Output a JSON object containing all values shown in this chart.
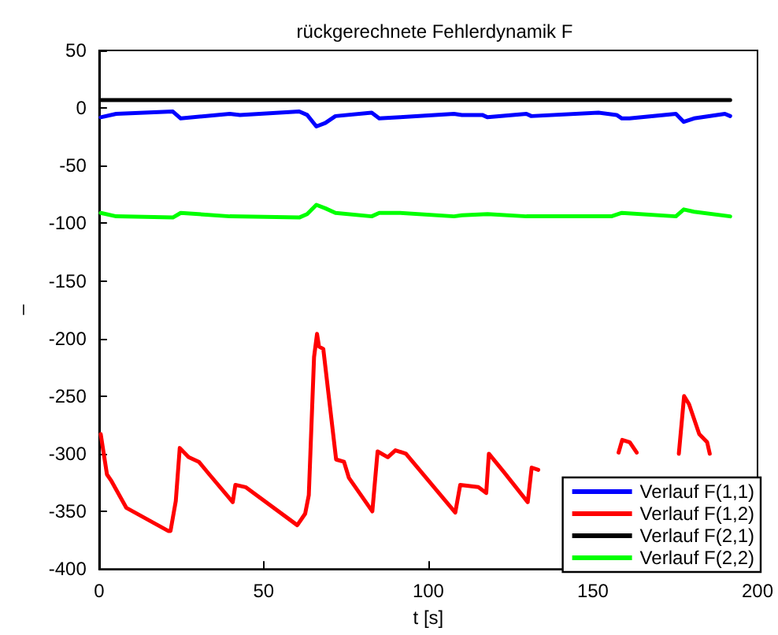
{
  "chart_data": {
    "type": "line",
    "title": "rückgerechnete Fehlerdynamik F",
    "xlabel": "t [s]",
    "ylabel": "–",
    "xlim": [
      0,
      200
    ],
    "xticks": [
      0,
      50,
      100,
      150,
      200
    ],
    "ylim": [
      -400,
      50
    ],
    "yticks": [
      -400,
      -350,
      -300,
      -250,
      -200,
      -150,
      -100,
      -50,
      0,
      50
    ],
    "grid": false,
    "legend": "bottom right",
    "marker": "none",
    "line_style": "solid",
    "series": [
      {
        "name": "Verlauf F(1,1)",
        "color": "#0000ff",
        "x": [
          0.5,
          5.2,
          22.4,
          24.8,
          39.7,
          42.8,
          60.8,
          63.2,
          66,
          68.7,
          71.8,
          82.8,
          85.1,
          91.4,
          107.8,
          110.2,
          116.4,
          118,
          129.8,
          131.3,
          151.7,
          157.2,
          158.8,
          161.1,
          175.2,
          177.6,
          180.7,
          190.1,
          191.7
        ],
        "values": [
          -8,
          -5,
          -3,
          -9,
          -5,
          -6,
          -3,
          -6,
          -16,
          -13,
          -7,
          -4,
          -9,
          -8,
          -5,
          -6,
          -6,
          -8,
          -5,
          -7,
          -4,
          -6,
          -9,
          -9,
          -5,
          -12,
          -9,
          -5,
          -7
        ]
      },
      {
        "name": "Verlauf F(1,2)",
        "color": "#ff0000",
        "x": [
          0.5,
          2.4,
          3.6,
          8.3,
          21,
          21.7,
          23.3,
          24.5,
          27.2,
          30.3,
          33.5,
          40.6,
          41.4,
          44.5,
          60.2,
          62.6,
          63.7,
          65.3,
          66.2,
          66.8,
          68.1,
          72,
          74.4,
          75.9,
          83,
          84.6,
          87.7,
          90,
          93.2,
          108.2,
          109.7,
          115.2,
          117.6,
          118.4,
          123,
          130.2,
          131.4,
          133.4,
          145,
          157.8,
          158.9,
          161.2,
          163.3,
          170,
          176.1,
          177.7,
          179.2,
          182.3,
          184.7,
          185.5
        ],
        "values": [
          -283,
          -318,
          -323,
          -347,
          -367,
          -367,
          -341,
          -295,
          -303,
          -307,
          -318,
          -342,
          -327,
          -329,
          -362,
          -352,
          -336,
          -216,
          -196,
          -207,
          -209,
          -305,
          -307,
          -321,
          -350,
          -298,
          -303,
          -297,
          -300,
          -351,
          -327,
          -329,
          -334,
          -300,
          -316,
          -342,
          -312,
          -314,
          null,
          -299,
          -288,
          -290,
          -299,
          null,
          -300,
          -250,
          -257,
          -283,
          -290,
          -300
        ]
      },
      {
        "name": "Verlauf F(2,1)",
        "color": "#000000",
        "x": [
          0.5,
          191.7
        ],
        "values": [
          7,
          7
        ]
      },
      {
        "name": "Verlauf F(2,2)",
        "color": "#00ff00",
        "x": [
          0.5,
          5.2,
          22.4,
          24.8,
          39.7,
          60.8,
          63.2,
          66,
          68.7,
          71.8,
          82.8,
          85.1,
          91.4,
          107.8,
          110.2,
          118,
          129.8,
          155.6,
          158.8,
          175.2,
          177.6,
          180.7,
          191.7
        ],
        "values": [
          -91,
          -94,
          -95,
          -91,
          -94,
          -95,
          -92,
          -84,
          -87,
          -91,
          -94,
          -91,
          -91,
          -94,
          -93,
          -92,
          -94,
          -94,
          -91,
          -94,
          -88,
          -90,
          -94
        ]
      }
    ]
  }
}
